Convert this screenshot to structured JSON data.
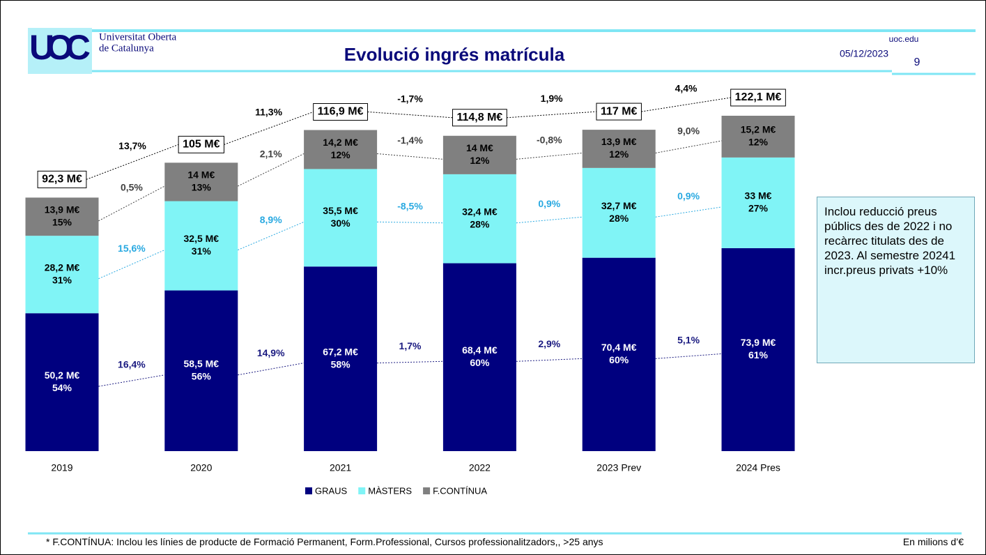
{
  "header": {
    "logo": "UOC",
    "university_line1": "Universitat Oberta",
    "university_line2": "de Catalunya",
    "title": "Evolució ingrés matrícula",
    "date": "05/12/2023",
    "site": "uoc.edu",
    "page_number": "9"
  },
  "chart_data": {
    "type": "bar",
    "stacked": true,
    "legend": "bottom",
    "categories": [
      "2019",
      "2020",
      "2021",
      "2022",
      "2023 Prev",
      "2024 Pres"
    ],
    "series": [
      {
        "name": "GRAUS",
        "color": "#00007f",
        "growth_color": "#1a1a80",
        "values": [
          50.2,
          58.5,
          67.2,
          68.4,
          70.4,
          73.9
        ],
        "value_labels": [
          "50,2 M€",
          "58,5 M€",
          "67,2 M€",
          "68,4 M€",
          "70,4 M€",
          "73,9 M€"
        ],
        "shares": [
          54,
          56,
          58,
          60,
          60,
          61
        ],
        "share_labels": [
          "54%",
          "56%",
          "58%",
          "60%",
          "60%",
          "61%"
        ],
        "growth": [
          16.4,
          14.9,
          1.7,
          2.9,
          5.1
        ],
        "growth_labels": [
          "16,4%",
          "14,9%",
          "1,7%",
          "2,9%",
          "5,1%"
        ]
      },
      {
        "name": "MÀSTERS",
        "color": "#80f4f6",
        "growth_color": "#29a9e1",
        "values": [
          28.2,
          32.5,
          35.5,
          32.4,
          32.7,
          33
        ],
        "value_labels": [
          "28,2 M€",
          "32,5 M€",
          "35,5 M€",
          "32,4 M€",
          "32,7 M€",
          "33 M€"
        ],
        "shares": [
          31,
          31,
          30,
          28,
          28,
          27
        ],
        "share_labels": [
          "31%",
          "31%",
          "30%",
          "28%",
          "28%",
          "27%"
        ],
        "growth": [
          15.6,
          8.9,
          -8.5,
          0.9,
          0.9
        ],
        "growth_labels": [
          "15,6%",
          "8,9%",
          "-8,5%",
          "0,9%",
          "0,9%"
        ]
      },
      {
        "name": "F.CONTÍNUA",
        "color": "#808080",
        "growth_color": "#404040",
        "values": [
          13.9,
          14,
          14.2,
          14,
          13.9,
          15.2
        ],
        "value_labels": [
          "13,9 M€",
          "14 M€",
          "14,2 M€",
          "14 M€",
          "13,9 M€",
          "15,2 M€"
        ],
        "shares": [
          15,
          13,
          12,
          12,
          12,
          12
        ],
        "share_labels": [
          "15%",
          "13%",
          "12%",
          "12%",
          "12%",
          "12%"
        ],
        "growth": [
          0.5,
          2.1,
          -1.4,
          -0.8,
          9.0
        ],
        "growth_labels": [
          "0,5%",
          "2,1%",
          "-1,4%",
          "-0,8%",
          "9,0%"
        ]
      }
    ],
    "totals": {
      "values": [
        92.3,
        105,
        116.9,
        114.8,
        117,
        122.1
      ],
      "value_labels": [
        "92,3 M€",
        "105 M€",
        "116,9 M€",
        "114,8 M€",
        "117 M€",
        "122,1 M€"
      ],
      "growth": [
        13.7,
        11.3,
        -1.7,
        1.9,
        4.4
      ],
      "growth_labels": [
        "13,7%",
        "11,3%",
        "-1,7%",
        "1,9%",
        "4,4%"
      ]
    }
  },
  "note": "Inclou reducció preus públics des de 2022 i no recàrrec titulats des de 2023. Al semestre 20241 incr.preus privats +10%",
  "footer": {
    "footnote": "* F.CONTÍNUA: Inclou les línies de producte de Formació Permanent, Form.Professional, Cursos professionalitzadors,, >25 anys",
    "units": "En milions d’€"
  }
}
